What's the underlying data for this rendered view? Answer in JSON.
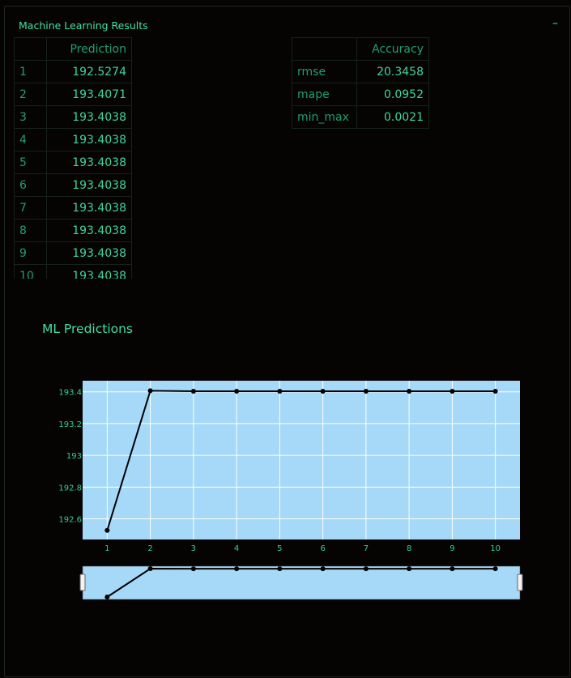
{
  "panel": {
    "title": "Machine Learning Results",
    "collapse_label": "–"
  },
  "predictions_table": {
    "header": "Prediction",
    "rows": [
      {
        "index": "1",
        "value": "192.5274"
      },
      {
        "index": "2",
        "value": "193.4071"
      },
      {
        "index": "3",
        "value": "193.4038"
      },
      {
        "index": "4",
        "value": "193.4038"
      },
      {
        "index": "5",
        "value": "193.4038"
      },
      {
        "index": "6",
        "value": "193.4038"
      },
      {
        "index": "7",
        "value": "193.4038"
      },
      {
        "index": "8",
        "value": "193.4038"
      },
      {
        "index": "9",
        "value": "193.4038"
      },
      {
        "index": "10",
        "value": "193.4038"
      }
    ]
  },
  "accuracy_table": {
    "header": "Accuracy",
    "rows": [
      {
        "metric": "rmse",
        "value": "20.3458"
      },
      {
        "metric": "mape",
        "value": "0.0952"
      },
      {
        "metric": "min_max",
        "value": "0.0021"
      }
    ]
  },
  "chart_data": {
    "type": "line",
    "title": "ML Predictions",
    "xlabel": "",
    "ylabel": "",
    "x": [
      1,
      2,
      3,
      4,
      5,
      6,
      7,
      8,
      9,
      10
    ],
    "series": [
      {
        "values": [
          192.5274,
          193.4071,
          193.4038,
          193.4038,
          193.4038,
          193.4038,
          193.4038,
          193.4038,
          193.4038,
          193.4038
        ]
      }
    ],
    "x_ticks": [
      "1",
      "2",
      "3",
      "4",
      "5",
      "6",
      "7",
      "8",
      "9",
      "10"
    ],
    "y_ticks": [
      "192.6",
      "192.8",
      "193",
      "193.2",
      "193.4"
    ],
    "xlim": [
      0.43,
      10.57
    ],
    "ylim": [
      192.47,
      193.47
    ],
    "grid": true,
    "range_slider": true,
    "colors": {
      "plot_bg": "#a6d8f7",
      "line": "#000000",
      "tick_text": "#2fd197"
    }
  }
}
